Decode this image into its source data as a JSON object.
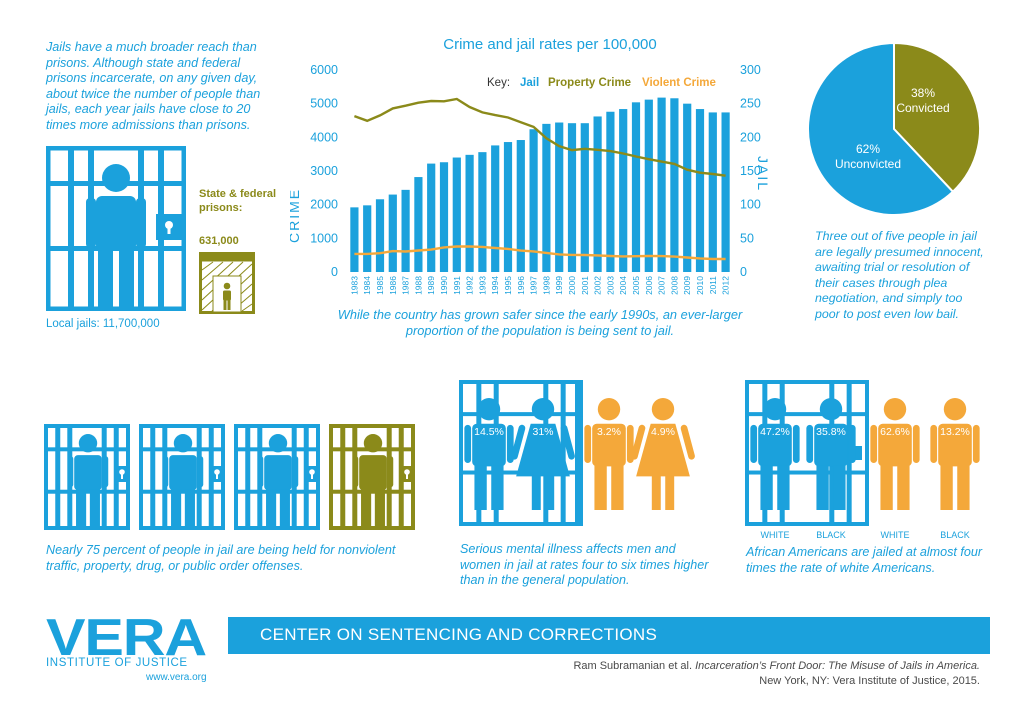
{
  "intro_text": "Jails have a much broader reach than prisons. Although state and federal prisons incarcerate, on any given day, about twice the number of people than jails, each year jails have close to 20 times more admissions than prisons.",
  "local_jails_label": "Local jails: 11,700,000",
  "state_federal_label": "State & federal prisons:",
  "state_federal_value": "631,000",
  "chart_data": [
    {
      "type": "bar",
      "title": "Crime and jail rates per 100,000",
      "left_axis_label": "CRIME",
      "right_axis_label": "JAIL",
      "key_label": "Key:",
      "legend": [
        "Jail",
        "Property Crime",
        "Violent Crime"
      ],
      "left_ticks": [
        "6000",
        "5000",
        "4000",
        "3000",
        "2000",
        "1000",
        "0"
      ],
      "right_ticks": [
        "300",
        "250",
        "200",
        "150",
        "100",
        "50",
        "0"
      ],
      "ylim_left": [
        0,
        6000
      ],
      "ylim_right": [
        0,
        300
      ],
      "categories": [
        "1983",
        "1984",
        "1985",
        "1986",
        "1987",
        "1988",
        "1989",
        "1990",
        "1991",
        "1992",
        "1993",
        "1994",
        "1995",
        "1996",
        "1997",
        "1998",
        "1999",
        "2000",
        "2001",
        "2002",
        "2003",
        "2004",
        "2005",
        "2006",
        "2007",
        "2008",
        "2009",
        "2010",
        "2011",
        "2012"
      ],
      "series": [
        {
          "name": "Jail",
          "axis": "right",
          "type": "bar",
          "color": "#1ba1dc",
          "values": [
            96,
            99,
            108,
            115,
            122,
            141,
            161,
            163,
            170,
            174,
            178,
            188,
            193,
            196,
            212,
            220,
            222,
            221,
            221,
            231,
            238,
            242,
            252,
            256,
            259,
            258,
            250,
            242,
            237,
            237
          ]
        },
        {
          "name": "Property Crime",
          "axis": "left",
          "type": "line",
          "color": "#8b8a1a",
          "values": [
            4630,
            4490,
            4650,
            4860,
            4940,
            5030,
            5080,
            5070,
            5140,
            4900,
            4740,
            4660,
            4590,
            4450,
            4310,
            3970,
            3740,
            3620,
            3660,
            3630,
            3590,
            3520,
            3430,
            3350,
            3280,
            3210,
            3040,
            2950,
            2910,
            2860
          ]
        },
        {
          "name": "Violent Crime",
          "axis": "left",
          "type": "line",
          "color": "#f4a83a",
          "values": [
            537,
            539,
            557,
            620,
            610,
            640,
            666,
            730,
            758,
            757,
            747,
            714,
            685,
            637,
            611,
            567,
            523,
            507,
            504,
            494,
            476,
            463,
            469,
            474,
            471,
            458,
            432,
            405,
            387,
            387
          ]
        }
      ],
      "caption": "While the country has grown safer since the early 1990s, an ever-larger proportion of the population is being sent to jail."
    },
    {
      "type": "pie",
      "slices": [
        {
          "label": "Convicted",
          "pct_label": "38%",
          "value": 38,
          "color": "#8b8a1a"
        },
        {
          "label": "Unconvicted",
          "pct_label": "62%",
          "value": 62,
          "color": "#1ba1dc"
        }
      ],
      "caption": "Three out of five people in jail are legally presumed innocent, awaiting trial or resolution of their cases through plea negotiation, and simply too poor to post even low bail."
    },
    {
      "type": "pictograph",
      "caption": "Nearly 75 percent of people in jail are being held for nonviolent traffic, property, drug, or public order offenses.",
      "cells": [
        {
          "color": "#1ba1dc"
        },
        {
          "color": "#1ba1dc"
        },
        {
          "color": "#1ba1dc"
        },
        {
          "color": "#8b8a1a"
        }
      ]
    },
    {
      "type": "bar",
      "caption": "Serious mental illness affects men and women in jail at rates four to six times higher than in the general population.",
      "figures": [
        {
          "label": "14.5%",
          "value": 14.5,
          "color": "#1ba1dc"
        },
        {
          "label": "31%",
          "value": 31,
          "color": "#1ba1dc"
        },
        {
          "label": "3.2%",
          "value": 3.2,
          "color": "#f4a83a"
        },
        {
          "label": "4.9%",
          "value": 4.9,
          "color": "#f4a83a"
        }
      ]
    },
    {
      "type": "bar",
      "caption": "African Americans are jailed at almost four times the rate of white Americans.",
      "figures": [
        {
          "label": "47.2%",
          "value": 47.2,
          "tag": "WHITE",
          "color": "#1ba1dc"
        },
        {
          "label": "35.8%",
          "value": 35.8,
          "tag": "BLACK",
          "color": "#1ba1dc"
        },
        {
          "label": "62.6%",
          "value": 62.6,
          "tag": "WHITE",
          "color": "#f4a83a"
        },
        {
          "label": "13.2%",
          "value": 13.2,
          "tag": "BLACK",
          "color": "#f4a83a"
        }
      ]
    }
  ],
  "footer": {
    "logo": "VERA",
    "institute": "INSTITUTE OF JUSTICE",
    "url": "www.vera.org",
    "banner": "CENTER ON SENTENCING AND CORRECTIONS",
    "citation_line1_a": "Ram Subramanian et al. ",
    "citation_line1_b": "Incarceration’s Front Door: The Misuse of Jails in America.",
    "citation_line2": "New York, NY: Vera Institute of Justice, 2015."
  },
  "colors": {
    "blue": "#1ba1dc",
    "olive": "#8b8a1a",
    "orange": "#f4a83a"
  }
}
